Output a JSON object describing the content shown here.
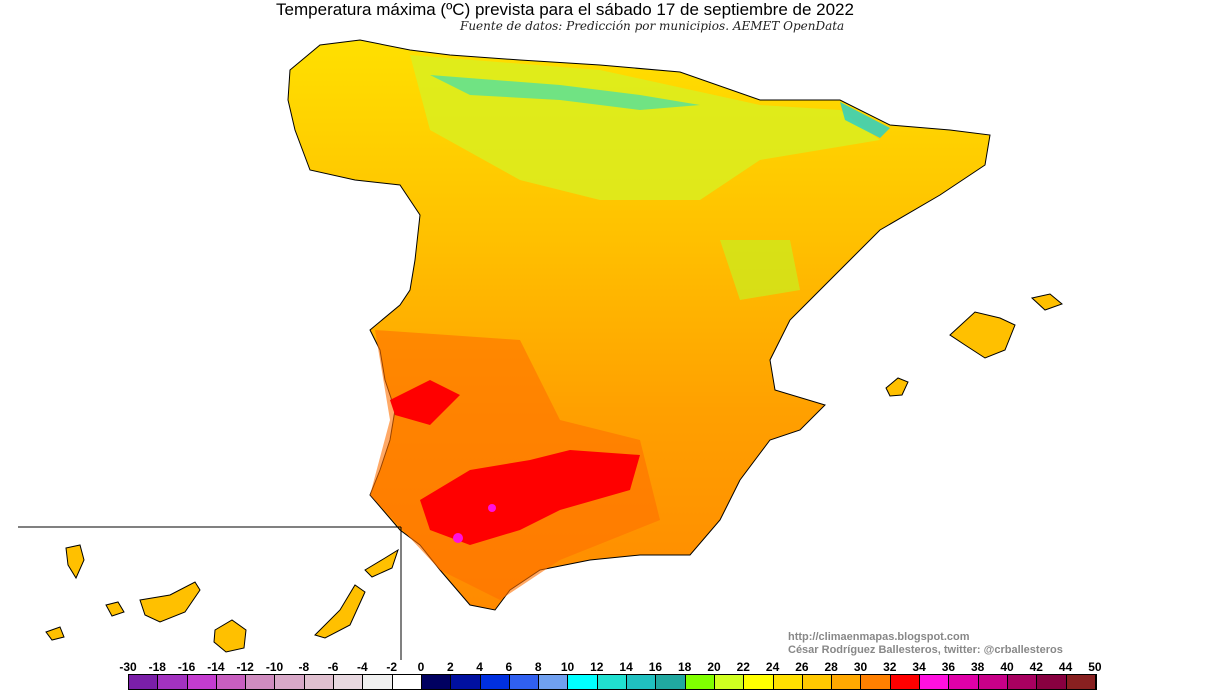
{
  "title": "Temperatura máxima (ºC) prevista para el sábado 17 de septiembre de 2022",
  "subtitle": "Fuente de datos: Predicción por municipios. AEMET OpenData",
  "credits": {
    "url": "http://climaenmapas.blogspot.com",
    "author": "César Rodríguez Ballesteros, twitter: @crballesteros"
  },
  "legend": {
    "labels": [
      "-30",
      "-18",
      "-16",
      "-14",
      "-12",
      "-10",
      "-8",
      "-6",
      "-4",
      "-2",
      "0",
      "2",
      "4",
      "6",
      "8",
      "10",
      "12",
      "14",
      "16",
      "18",
      "20",
      "22",
      "24",
      "26",
      "28",
      "30",
      "32",
      "34",
      "36",
      "38",
      "40",
      "42",
      "44",
      "50"
    ],
    "colors": [
      "#7a1fa8",
      "#a232c0",
      "#c43cd0",
      "#c85ec0",
      "#d08cc0",
      "#d8a8c8",
      "#e0c0d0",
      "#e8d8e0",
      "#f0f0f0",
      "#ffffff",
      "#000060",
      "#0010a0",
      "#0030e0",
      "#3060f0",
      "#70a0f0",
      "#00ffff",
      "#20e0d0",
      "#20c0c0",
      "#20a8a0",
      "#80ff00",
      "#d0ff20",
      "#ffff00",
      "#ffe000",
      "#ffc800",
      "#ffa800",
      "#ff8000",
      "#ff0000",
      "#ff10e0",
      "#e000a8",
      "#c80088",
      "#a80060",
      "#880040",
      "#882020"
    ]
  }
}
